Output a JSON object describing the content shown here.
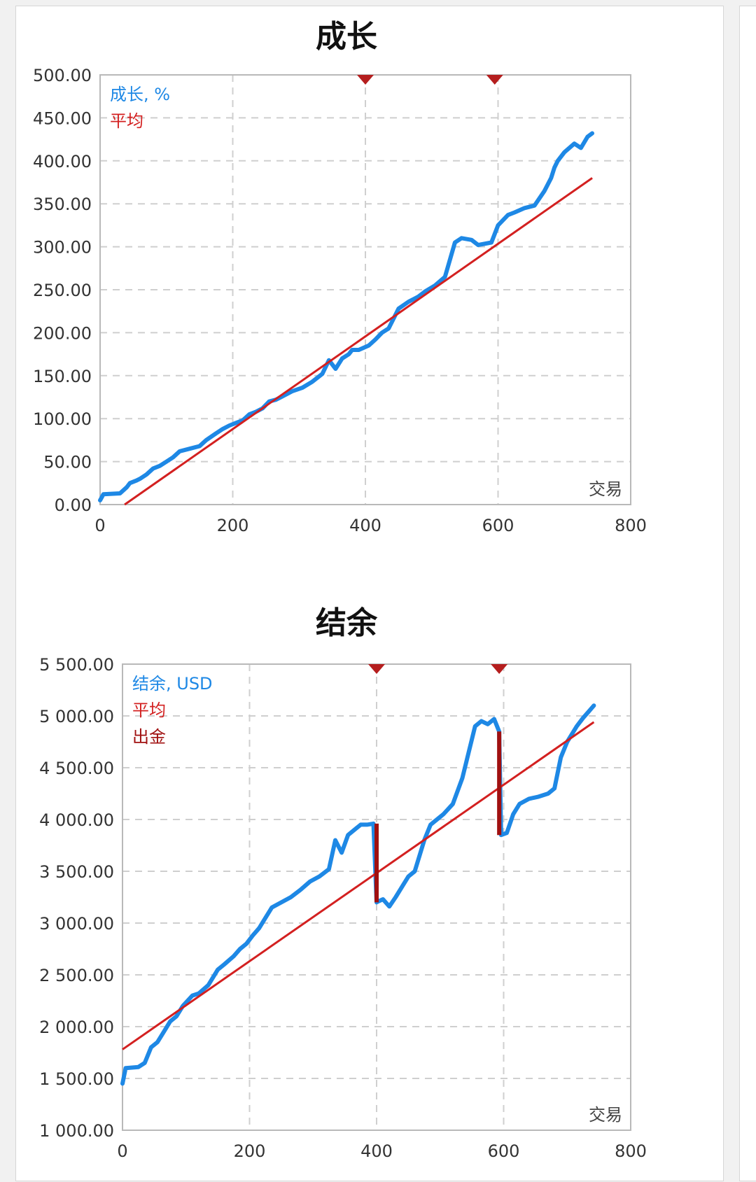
{
  "colors": {
    "growth": "#1e88e5",
    "average": "#d32020",
    "withdrawal": "#a01010",
    "marker": "#b51e1e",
    "grid": "#cfcfcf",
    "frame": "#b9b9b9"
  },
  "chart_data": [
    {
      "type": "line",
      "title": "成长",
      "xlabel": "交易",
      "ylabel": "",
      "xlim": [
        0,
        800
      ],
      "ylim": [
        0,
        500
      ],
      "x_ticks": [
        "0",
        "200",
        "400",
        "600",
        "800"
      ],
      "y_ticks": [
        "0.00",
        "50.00",
        "100.00",
        "150.00",
        "200.00",
        "250.00",
        "300.00",
        "350.00",
        "400.00",
        "450.00",
        "500.00"
      ],
      "markers_x": [
        400,
        595
      ],
      "grid": true,
      "legend_position": "top-left",
      "series": [
        {
          "name": "成长, %",
          "kind": "main",
          "x": [
            0,
            5,
            30,
            40,
            45,
            55,
            60,
            70,
            80,
            90,
            100,
            110,
            120,
            135,
            150,
            160,
            175,
            185,
            195,
            205,
            215,
            225,
            235,
            245,
            255,
            265,
            275,
            290,
            305,
            320,
            335,
            345,
            355,
            365,
            375,
            380,
            390,
            405,
            415,
            425,
            435,
            450,
            465,
            475,
            480,
            490,
            505,
            520,
            535,
            545,
            560,
            570,
            590,
            600,
            615,
            625,
            640,
            655,
            670,
            680,
            685,
            690,
            700,
            715,
            725,
            735,
            742
          ],
          "y": [
            5,
            12,
            13,
            20,
            25,
            28,
            30,
            35,
            42,
            45,
            50,
            55,
            62,
            65,
            68,
            75,
            83,
            88,
            92,
            95,
            98,
            105,
            108,
            112,
            120,
            122,
            126,
            132,
            136,
            143,
            152,
            168,
            158,
            170,
            175,
            180,
            180,
            185,
            192,
            200,
            205,
            228,
            236,
            240,
            242,
            248,
            255,
            265,
            305,
            310,
            308,
            302,
            305,
            325,
            337,
            340,
            345,
            348,
            365,
            380,
            392,
            400,
            410,
            420,
            415,
            428,
            432
          ]
        },
        {
          "name": "平均",
          "kind": "avg",
          "x": [
            37,
            742
          ],
          "y": [
            0,
            380
          ]
        }
      ]
    },
    {
      "type": "line",
      "title": "结余",
      "xlabel": "交易",
      "ylabel": "",
      "xlim": [
        0,
        800
      ],
      "ylim": [
        1000,
        5500
      ],
      "x_ticks": [
        "0",
        "200",
        "400",
        "600",
        "800"
      ],
      "y_ticks": [
        "1 000.00",
        "1 500.00",
        "2 000.00",
        "2 500.00",
        "3 000.00",
        "3 500.00",
        "4 000.00",
        "4 500.00",
        "5 000.00",
        "5 500.00"
      ],
      "markers_x": [
        400,
        593
      ],
      "grid": true,
      "legend_position": "top-left",
      "series": [
        {
          "name": "结余, USD",
          "kind": "main",
          "x": [
            0,
            5,
            25,
            35,
            45,
            55,
            65,
            75,
            85,
            95,
            110,
            120,
            135,
            150,
            160,
            175,
            185,
            195,
            205,
            215,
            225,
            235,
            250,
            265,
            280,
            295,
            310,
            325,
            335,
            345,
            355,
            365,
            375,
            385,
            395,
            400,
            403,
            410,
            420,
            430,
            440,
            450,
            460,
            475,
            485,
            495,
            505,
            520,
            535,
            545,
            555,
            565,
            575,
            585,
            593,
            596,
            605,
            615,
            625,
            640,
            655,
            670,
            680,
            690,
            700,
            715,
            725,
            735,
            742
          ],
          "y": [
            1450,
            1600,
            1610,
            1650,
            1800,
            1850,
            1950,
            2050,
            2100,
            2200,
            2300,
            2320,
            2400,
            2550,
            2600,
            2680,
            2750,
            2800,
            2880,
            2950,
            3050,
            3150,
            3200,
            3250,
            3320,
            3400,
            3450,
            3520,
            3800,
            3680,
            3850,
            3900,
            3950,
            3950,
            3960,
            3200,
            3210,
            3230,
            3160,
            3250,
            3350,
            3450,
            3500,
            3800,
            3950,
            4000,
            4050,
            4150,
            4400,
            4650,
            4900,
            4950,
            4920,
            4970,
            4850,
            3850,
            3870,
            4050,
            4150,
            4200,
            4220,
            4250,
            4300,
            4600,
            4750,
            4900,
            4980,
            5050,
            5100
          ]
        },
        {
          "name": "平均",
          "kind": "avg",
          "x": [
            0,
            742
          ],
          "y": [
            1780,
            4940
          ]
        },
        {
          "name": "出金",
          "kind": "withdrawal",
          "segments": [
            {
              "x": [
                400,
                400
              ],
              "y": [
                3960,
                3200
              ]
            },
            {
              "x": [
                593,
                593
              ],
              "y": [
                4850,
                3850
              ]
            }
          ]
        }
      ]
    }
  ]
}
